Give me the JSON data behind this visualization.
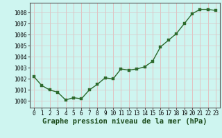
{
  "x": [
    0,
    1,
    2,
    3,
    4,
    5,
    6,
    7,
    8,
    9,
    10,
    11,
    12,
    13,
    14,
    15,
    16,
    17,
    18,
    19,
    20,
    21,
    22,
    23
  ],
  "y": [
    1002.2,
    1001.4,
    1001.0,
    1000.8,
    1000.1,
    1000.3,
    1000.2,
    1001.0,
    1001.5,
    1002.1,
    1002.0,
    1002.9,
    1002.8,
    1002.9,
    1003.1,
    1003.6,
    1004.9,
    1005.5,
    1006.1,
    1007.0,
    1007.9,
    1008.3,
    1008.3,
    1008.2
  ],
  "line_color": "#2d6a2d",
  "marker_color": "#2d6a2d",
  "bg_color": "#cef5f0",
  "grid_color_v": "#e8b0b0",
  "grid_color_h": "#d8c8c8",
  "ylabel_values": [
    1000,
    1001,
    1002,
    1003,
    1004,
    1005,
    1006,
    1007,
    1008
  ],
  "xlabel": "Graphe pression niveau de la mer (hPa)",
  "xlim": [
    -0.5,
    23.5
  ],
  "ylim": [
    999.4,
    1008.9
  ],
  "tick_fontsize": 5.5,
  "xlabel_fontsize": 7.5,
  "marker_size": 2.5,
  "line_width": 1.0
}
